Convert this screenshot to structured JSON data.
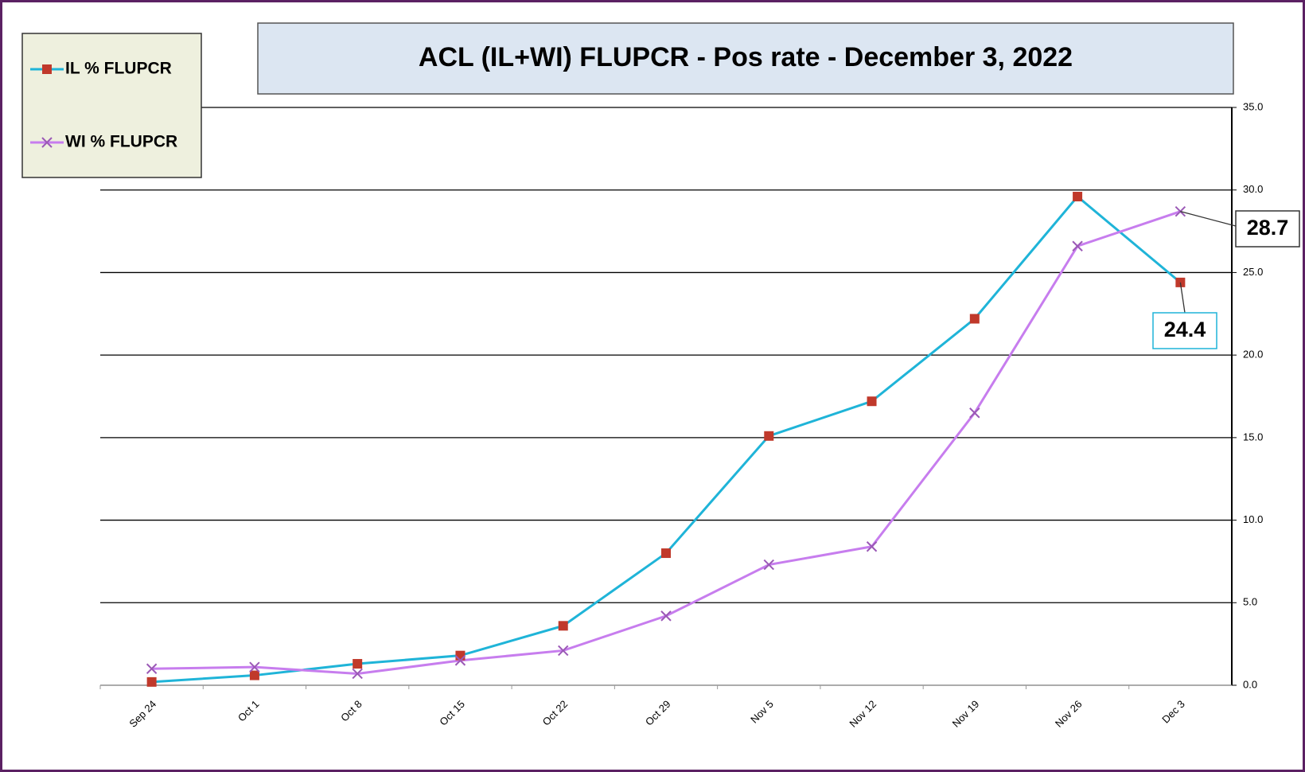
{
  "chart_data": {
    "type": "line",
    "title": "ACL (IL+WI) FLUPCR -  Pos rate  - December 3, 2022",
    "categories": [
      "Sep 24",
      "Oct 1",
      "Oct 8",
      "Oct 15",
      "Oct 22",
      "Oct 29",
      "Nov 5",
      "Nov 12",
      "Nov 19",
      "Nov 26",
      "Dec 3"
    ],
    "series": [
      {
        "name": "IL % FLUPCR",
        "color": "#1fb4d8",
        "marker": "square",
        "marker_color": "#c0392b",
        "values": [
          0.2,
          0.6,
          1.3,
          1.8,
          3.6,
          8.0,
          15.1,
          17.2,
          22.2,
          29.6,
          24.4
        ]
      },
      {
        "name": "WI % FLUPCR",
        "color": "#c77dee",
        "marker": "x",
        "marker_color": "#9b59b6",
        "values": [
          1.0,
          1.1,
          0.7,
          1.5,
          2.1,
          4.2,
          7.3,
          8.4,
          16.5,
          26.6,
          28.7
        ]
      }
    ],
    "ylim": [
      0,
      35
    ],
    "yticks": [
      {
        "value": 0,
        "label": "0.0"
      },
      {
        "value": 5,
        "label": "5.0"
      },
      {
        "value": 10,
        "label": "10.0"
      },
      {
        "value": 15,
        "label": "15.0"
      },
      {
        "value": 20,
        "label": "20.0"
      },
      {
        "value": 25,
        "label": "25.0"
      },
      {
        "value": 30,
        "label": "30.0"
      },
      {
        "value": 35,
        "label": "35.0"
      }
    ],
    "grid": true
  }
}
